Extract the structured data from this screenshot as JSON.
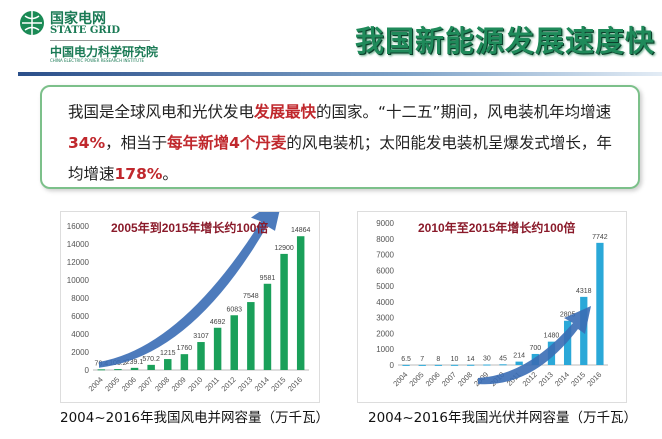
{
  "header": {
    "logo_cn": "国家电网",
    "logo_en": "STATE GRID",
    "institute": "中国电力科学研究院",
    "institute_en": "CHINA ELECTRIC POWER RESEARCH INSTITUTE",
    "title": "我国新能源发展速度快"
  },
  "summary": {
    "segments": [
      {
        "t": "我国是全球风电和光伏发电",
        "h": false
      },
      {
        "t": "发展最快",
        "h": true
      },
      {
        "t": "的国家。“十二五”期间，风电装机年均增速",
        "h": false
      },
      {
        "t": "34%",
        "h": true
      },
      {
        "t": "，相当于",
        "h": false
      },
      {
        "t": "每年新增4个丹麦",
        "h": true
      },
      {
        "t": "的风电装机；太阳能发电装机呈爆发式增长，年均增速",
        "h": false
      },
      {
        "t": "178%",
        "h": true
      },
      {
        "t": "。",
        "h": false
      }
    ]
  },
  "colors": {
    "wind_bar": "#1aa05a",
    "solar_bar": "#2aa8d8",
    "arrow": "#3a6db5",
    "highlight": "#c0282d"
  },
  "chart_data": [
    {
      "type": "bar",
      "title": "2005年到2015年增长约100倍",
      "caption": "2004~2016年我国风电并网容量（万千瓦）",
      "categories": [
        "2004",
        "2005",
        "2006",
        "2007",
        "2008",
        "2009",
        "2010",
        "2011",
        "2012",
        "2013",
        "2014",
        "2015",
        "2016"
      ],
      "values": [
        76.4,
        105.2,
        239.1,
        570.2,
        1215,
        1760,
        3107,
        4692,
        6083,
        7548,
        9581,
        12900,
        14864
      ],
      "labels": [
        "76.4",
        "105.2",
        "239.1",
        "570.2",
        "1215",
        "1760",
        "3107",
        "4692",
        "6083",
        "7548",
        "9581",
        "12900",
        "14864"
      ],
      "ylim": [
        0,
        16000
      ],
      "yticks": [
        0,
        2000,
        4000,
        6000,
        8000,
        10000,
        12000,
        14000,
        16000
      ],
      "grid": false
    },
    {
      "type": "bar",
      "title": "2010年至2015年增长约100倍",
      "caption": "2004~2016年我国光伏并网容量（万千瓦）",
      "categories": [
        "2004",
        "2005",
        "2006",
        "2007",
        "2008",
        "2009",
        "2010",
        "2011",
        "2012",
        "2013",
        "2014",
        "2015",
        "2016"
      ],
      "values": [
        6.5,
        7,
        8,
        10,
        14,
        30,
        45,
        214,
        700,
        1480,
        2805,
        4318,
        7742
      ],
      "labels": [
        "6.5",
        "7",
        "8",
        "10",
        "14",
        "30",
        "45",
        "214",
        "700",
        "1480",
        "2805",
        "4318",
        "7742"
      ],
      "ylim": [
        0,
        9000
      ],
      "yticks": [
        0,
        1000,
        2000,
        3000,
        4000,
        5000,
        6000,
        7000,
        8000,
        9000
      ],
      "grid": false
    }
  ]
}
